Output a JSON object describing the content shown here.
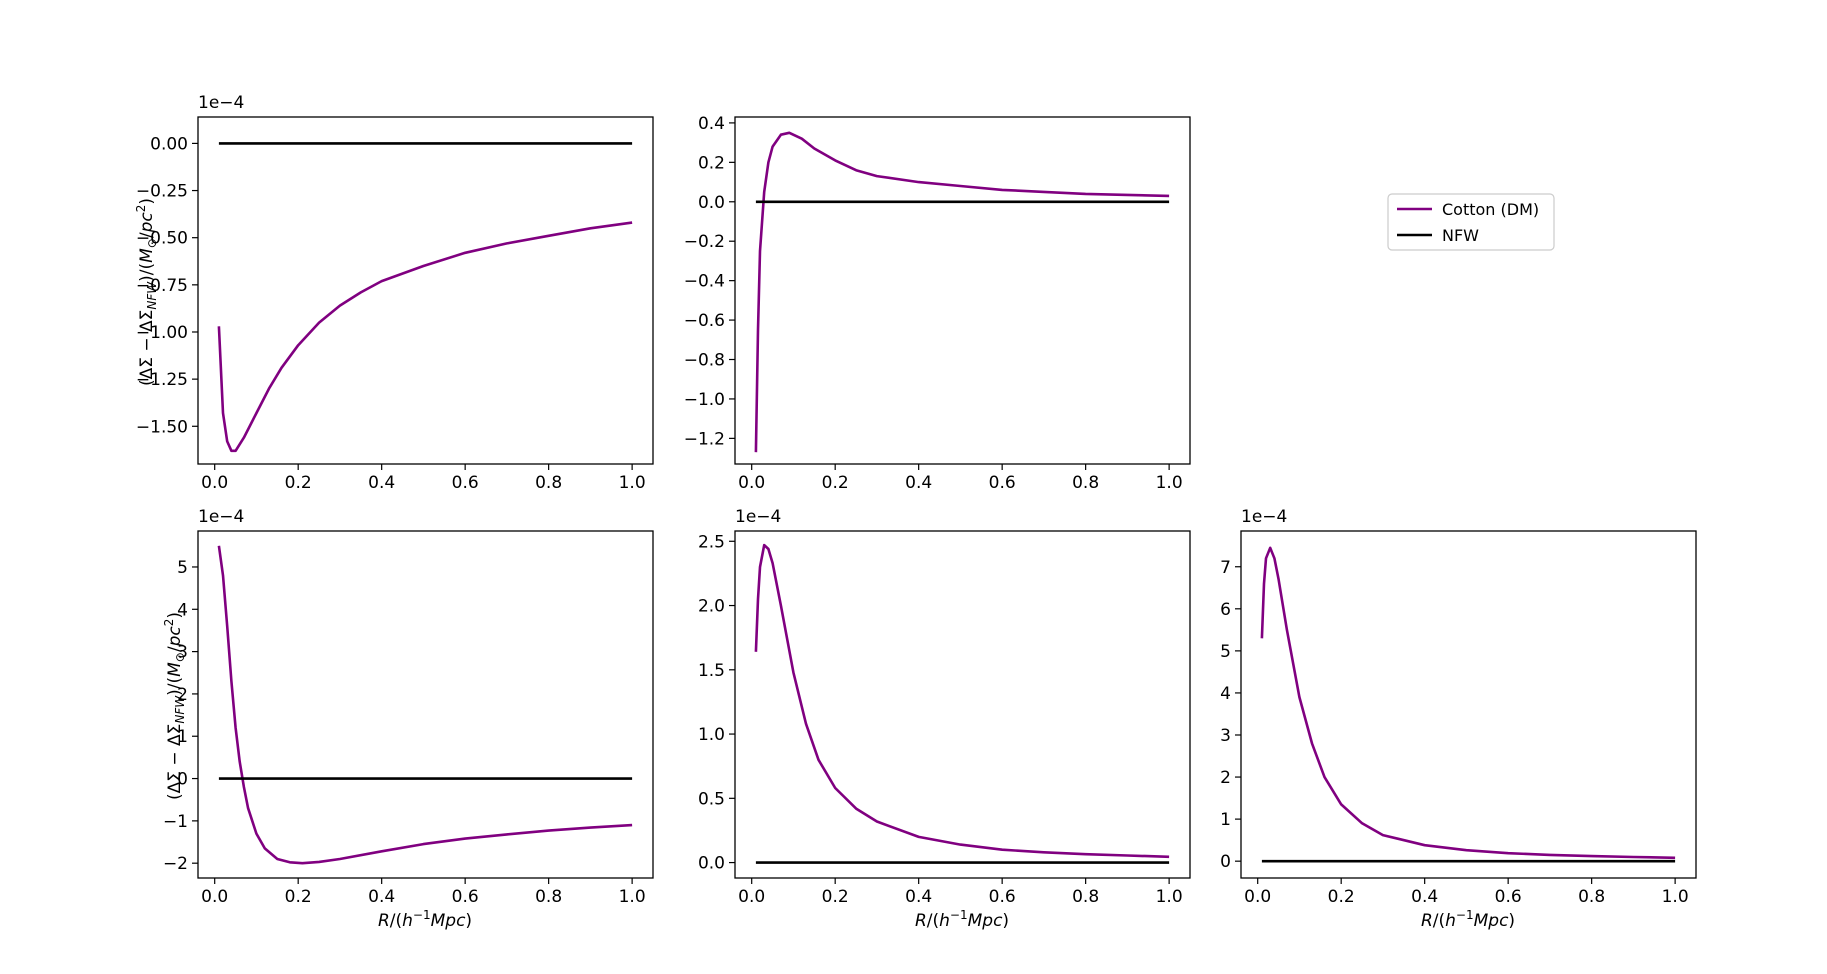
{
  "legend": {
    "placement": "top-right (empty grid cell)",
    "entries": [
      {
        "label": "Cotton (DM)",
        "color": "#800080"
      },
      {
        "label": "NFW",
        "color": "#000000"
      }
    ]
  },
  "chart_data": [
    {
      "type": "line",
      "panel": "row1-col1",
      "offset_text": "1e−4",
      "ylabel_tex": "(ΔΣ − ΔΣ_NFW)/(M_⊙/pc^2)",
      "xlabel": "",
      "xlim": [
        -0.04,
        1.05
      ],
      "ylim": [
        -1.7,
        0.14
      ],
      "xticks": [
        0.0,
        0.2,
        0.4,
        0.6,
        0.8,
        1.0
      ],
      "xtick_labels": [
        "0.0",
        "0.2",
        "0.4",
        "0.6",
        "0.8",
        "1.0"
      ],
      "yticks": [
        0.0,
        -0.25,
        -0.5,
        -0.75,
        -1.0,
        -1.25,
        -1.5
      ],
      "ytick_labels": [
        "0.00",
        "−0.25",
        "−0.50",
        "−0.75",
        "−1.00",
        "−1.25",
        "−1.50"
      ],
      "series": [
        {
          "name": "Cotton (DM)",
          "color": "#800080",
          "x": [
            0.01,
            0.02,
            0.03,
            0.04,
            0.05,
            0.07,
            0.1,
            0.13,
            0.16,
            0.2,
            0.25,
            0.3,
            0.35,
            0.4,
            0.5,
            0.6,
            0.7,
            0.8,
            0.9,
            1.0
          ],
          "y": [
            -0.97,
            -1.43,
            -1.58,
            -1.63,
            -1.63,
            -1.56,
            -1.43,
            -1.3,
            -1.19,
            -1.07,
            -0.95,
            -0.86,
            -0.79,
            -0.73,
            -0.65,
            -0.58,
            -0.53,
            -0.49,
            -0.45,
            -0.42
          ]
        },
        {
          "name": "NFW",
          "color": "#000000",
          "x": [
            0.01,
            1.0
          ],
          "y": [
            0.0,
            0.0
          ]
        }
      ]
    },
    {
      "type": "line",
      "panel": "row1-col2",
      "offset_text": "",
      "ylabel_tex": "",
      "xlabel": "",
      "xlim": [
        -0.04,
        1.05
      ],
      "ylim": [
        -1.33,
        0.43
      ],
      "xticks": [
        0.0,
        0.2,
        0.4,
        0.6,
        0.8,
        1.0
      ],
      "xtick_labels": [
        "0.0",
        "0.2",
        "0.4",
        "0.6",
        "0.8",
        "1.0"
      ],
      "yticks": [
        0.4,
        0.2,
        0.0,
        -0.2,
        -0.4,
        -0.6,
        -0.8,
        -1.0,
        -1.2
      ],
      "ytick_labels": [
        "0.4",
        "0.2",
        "0.0",
        "−0.2",
        "−0.4",
        "−0.6",
        "−0.8",
        "−1.0",
        "−1.2"
      ],
      "series": [
        {
          "name": "Cotton (DM)",
          "color": "#800080",
          "x": [
            0.01,
            0.015,
            0.02,
            0.03,
            0.04,
            0.05,
            0.07,
            0.09,
            0.12,
            0.15,
            0.2,
            0.25,
            0.3,
            0.4,
            0.5,
            0.6,
            0.7,
            0.8,
            0.9,
            1.0
          ],
          "y": [
            -1.27,
            -0.65,
            -0.25,
            0.05,
            0.2,
            0.28,
            0.34,
            0.35,
            0.32,
            0.27,
            0.21,
            0.16,
            0.13,
            0.1,
            0.08,
            0.06,
            0.05,
            0.04,
            0.035,
            0.03
          ]
        },
        {
          "name": "NFW",
          "color": "#000000",
          "x": [
            0.01,
            1.0
          ],
          "y": [
            0.0,
            0.0
          ]
        }
      ]
    },
    {
      "type": "line",
      "panel": "row2-col1",
      "offset_text": "1e−4",
      "ylabel_tex": "(ΔΣ − ΔΣ_NFW)/(M_⊙/pc^2)",
      "xlabel_tex": "R/(h^−1 Mpc)",
      "xlim": [
        -0.04,
        1.05
      ],
      "ylim": [
        -2.35,
        5.85
      ],
      "xticks": [
        0.0,
        0.2,
        0.4,
        0.6,
        0.8,
        1.0
      ],
      "xtick_labels": [
        "0.0",
        "0.2",
        "0.4",
        "0.6",
        "0.8",
        "1.0"
      ],
      "yticks": [
        5,
        4,
        3,
        2,
        1,
        0,
        -1,
        -2
      ],
      "ytick_labels": [
        "5",
        "4",
        "3",
        "2",
        "1",
        "0",
        "−1",
        "−2"
      ],
      "series": [
        {
          "name": "Cotton (DM)",
          "color": "#800080",
          "x": [
            0.01,
            0.02,
            0.03,
            0.04,
            0.05,
            0.06,
            0.07,
            0.08,
            0.1,
            0.12,
            0.15,
            0.18,
            0.21,
            0.25,
            0.3,
            0.4,
            0.5,
            0.6,
            0.7,
            0.8,
            0.9,
            1.0
          ],
          "y": [
            5.5,
            4.8,
            3.6,
            2.3,
            1.2,
            0.4,
            -0.2,
            -0.7,
            -1.3,
            -1.65,
            -1.9,
            -1.98,
            -2.0,
            -1.97,
            -1.9,
            -1.72,
            -1.55,
            -1.42,
            -1.32,
            -1.23,
            -1.16,
            -1.1
          ]
        },
        {
          "name": "NFW",
          "color": "#000000",
          "x": [
            0.01,
            1.0
          ],
          "y": [
            0.0,
            0.0
          ]
        }
      ]
    },
    {
      "type": "line",
      "panel": "row2-col2",
      "offset_text": "1e−4",
      "ylabel_tex": "",
      "xlabel_tex": "R/(h^−1 Mpc)",
      "xlim": [
        -0.04,
        1.05
      ],
      "ylim": [
        -0.12,
        2.58
      ],
      "xticks": [
        0.0,
        0.2,
        0.4,
        0.6,
        0.8,
        1.0
      ],
      "xtick_labels": [
        "0.0",
        "0.2",
        "0.4",
        "0.6",
        "0.8",
        "1.0"
      ],
      "yticks": [
        2.5,
        2.0,
        1.5,
        1.0,
        0.5,
        0.0
      ],
      "ytick_labels": [
        "2.5",
        "2.0",
        "1.5",
        "1.0",
        "0.5",
        "0.0"
      ],
      "series": [
        {
          "name": "Cotton (DM)",
          "color": "#800080",
          "x": [
            0.01,
            0.015,
            0.02,
            0.03,
            0.04,
            0.05,
            0.07,
            0.1,
            0.13,
            0.16,
            0.2,
            0.25,
            0.3,
            0.4,
            0.5,
            0.6,
            0.7,
            0.8,
            0.9,
            1.0
          ],
          "y": [
            1.64,
            2.05,
            2.3,
            2.47,
            2.44,
            2.33,
            2.0,
            1.48,
            1.08,
            0.8,
            0.58,
            0.42,
            0.32,
            0.2,
            0.14,
            0.1,
            0.08,
            0.065,
            0.055,
            0.045
          ]
        },
        {
          "name": "NFW",
          "color": "#000000",
          "x": [
            0.01,
            1.0
          ],
          "y": [
            0.0,
            0.0
          ]
        }
      ]
    },
    {
      "type": "line",
      "panel": "row2-col3",
      "offset_text": "1e−4",
      "ylabel_tex": "",
      "xlabel_tex": "R/(h^−1 Mpc)",
      "xlim": [
        -0.04,
        1.05
      ],
      "ylim": [
        -0.4,
        7.85
      ],
      "xticks": [
        0.0,
        0.2,
        0.4,
        0.6,
        0.8,
        1.0
      ],
      "xtick_labels": [
        "0.0",
        "0.2",
        "0.4",
        "0.6",
        "0.8",
        "1.0"
      ],
      "yticks": [
        7,
        6,
        5,
        4,
        3,
        2,
        1,
        0
      ],
      "ytick_labels": [
        "7",
        "6",
        "5",
        "4",
        "3",
        "2",
        "1",
        "0"
      ],
      "series": [
        {
          "name": "Cotton (DM)",
          "color": "#800080",
          "x": [
            0.01,
            0.015,
            0.02,
            0.03,
            0.04,
            0.05,
            0.07,
            0.1,
            0.13,
            0.16,
            0.2,
            0.25,
            0.3,
            0.4,
            0.5,
            0.6,
            0.7,
            0.8,
            0.9,
            1.0
          ],
          "y": [
            5.3,
            6.6,
            7.2,
            7.45,
            7.2,
            6.7,
            5.5,
            3.9,
            2.8,
            2.0,
            1.35,
            0.9,
            0.62,
            0.38,
            0.26,
            0.19,
            0.15,
            0.12,
            0.1,
            0.08
          ]
        },
        {
          "name": "NFW",
          "color": "#000000",
          "x": [
            0.01,
            1.0
          ],
          "y": [
            0.0,
            0.0
          ]
        }
      ]
    }
  ]
}
